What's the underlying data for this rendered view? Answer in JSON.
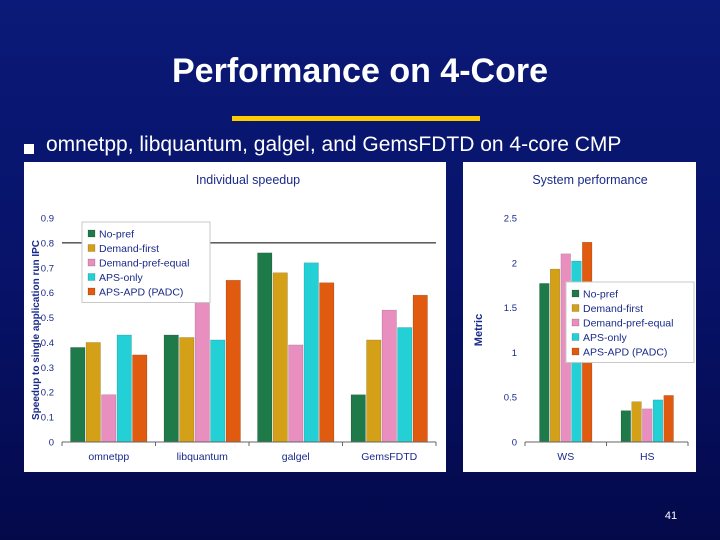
{
  "slide": {
    "title": "Performance on 4-Core",
    "bullet": "omnetpp, libquantum, galgel, and GemsFDTD on 4-core CMP",
    "page_number": "41",
    "accent_color": "#ffcc00"
  },
  "chart_data": [
    {
      "type": "bar",
      "title": "Individual speedup",
      "xlabel": "",
      "ylabel": "Speedup to single application run IPC",
      "ylim": [
        0,
        0.9
      ],
      "ytick_step": 0.1,
      "ytick_labels": [
        "0",
        "0.1",
        "0.2",
        "0.3",
        "0.4",
        "0.5",
        "0.6",
        "0.7",
        "0.8",
        "0.9"
      ],
      "grid": false,
      "legend": "top-left",
      "categories": [
        "omnetpp",
        "libquantum",
        "galgel",
        "GemsFDTD"
      ],
      "series": [
        {
          "name": "No-pref",
          "color": "#1f7a4a",
          "values": [
            0.38,
            0.43,
            0.76,
            0.19
          ]
        },
        {
          "name": "Demand-first",
          "color": "#d4a017",
          "values": [
            0.4,
            0.42,
            0.68,
            0.41
          ]
        },
        {
          "name": "Demand-pref-equal",
          "color": "#e88fc0",
          "values": [
            0.19,
            0.8,
            0.39,
            0.53
          ]
        },
        {
          "name": "APS-only",
          "color": "#22d0d6",
          "values": [
            0.43,
            0.41,
            0.72,
            0.46
          ]
        },
        {
          "name": "APS-APD (PADC)",
          "color": "#e05a10",
          "values": [
            0.35,
            0.65,
            0.64,
            0.59
          ]
        }
      ],
      "annotations": [
        "clipped-bar indicator at 0.8"
      ]
    },
    {
      "type": "bar",
      "title": "System performance",
      "xlabel": "",
      "ylabel": "Metric",
      "ylim": [
        0,
        2.5
      ],
      "ytick_step": 0.5,
      "ytick_labels": [
        "0",
        "0.5",
        "1",
        "1.5",
        "2",
        "2.5"
      ],
      "grid": false,
      "legend": "right",
      "categories": [
        "WS",
        "HS"
      ],
      "series": [
        {
          "name": "No-pref",
          "color": "#1f7a4a",
          "values": [
            1.77,
            0.35
          ]
        },
        {
          "name": "Demand-first",
          "color": "#d4a017",
          "values": [
            1.93,
            0.45
          ]
        },
        {
          "name": "Demand-pref-equal",
          "color": "#e88fc0",
          "values": [
            2.1,
            0.37
          ]
        },
        {
          "name": "APS-only",
          "color": "#22d0d6",
          "values": [
            2.02,
            0.47
          ]
        },
        {
          "name": "APS-APD (PADC)",
          "color": "#e05a10",
          "values": [
            2.23,
            0.52
          ]
        }
      ]
    }
  ]
}
